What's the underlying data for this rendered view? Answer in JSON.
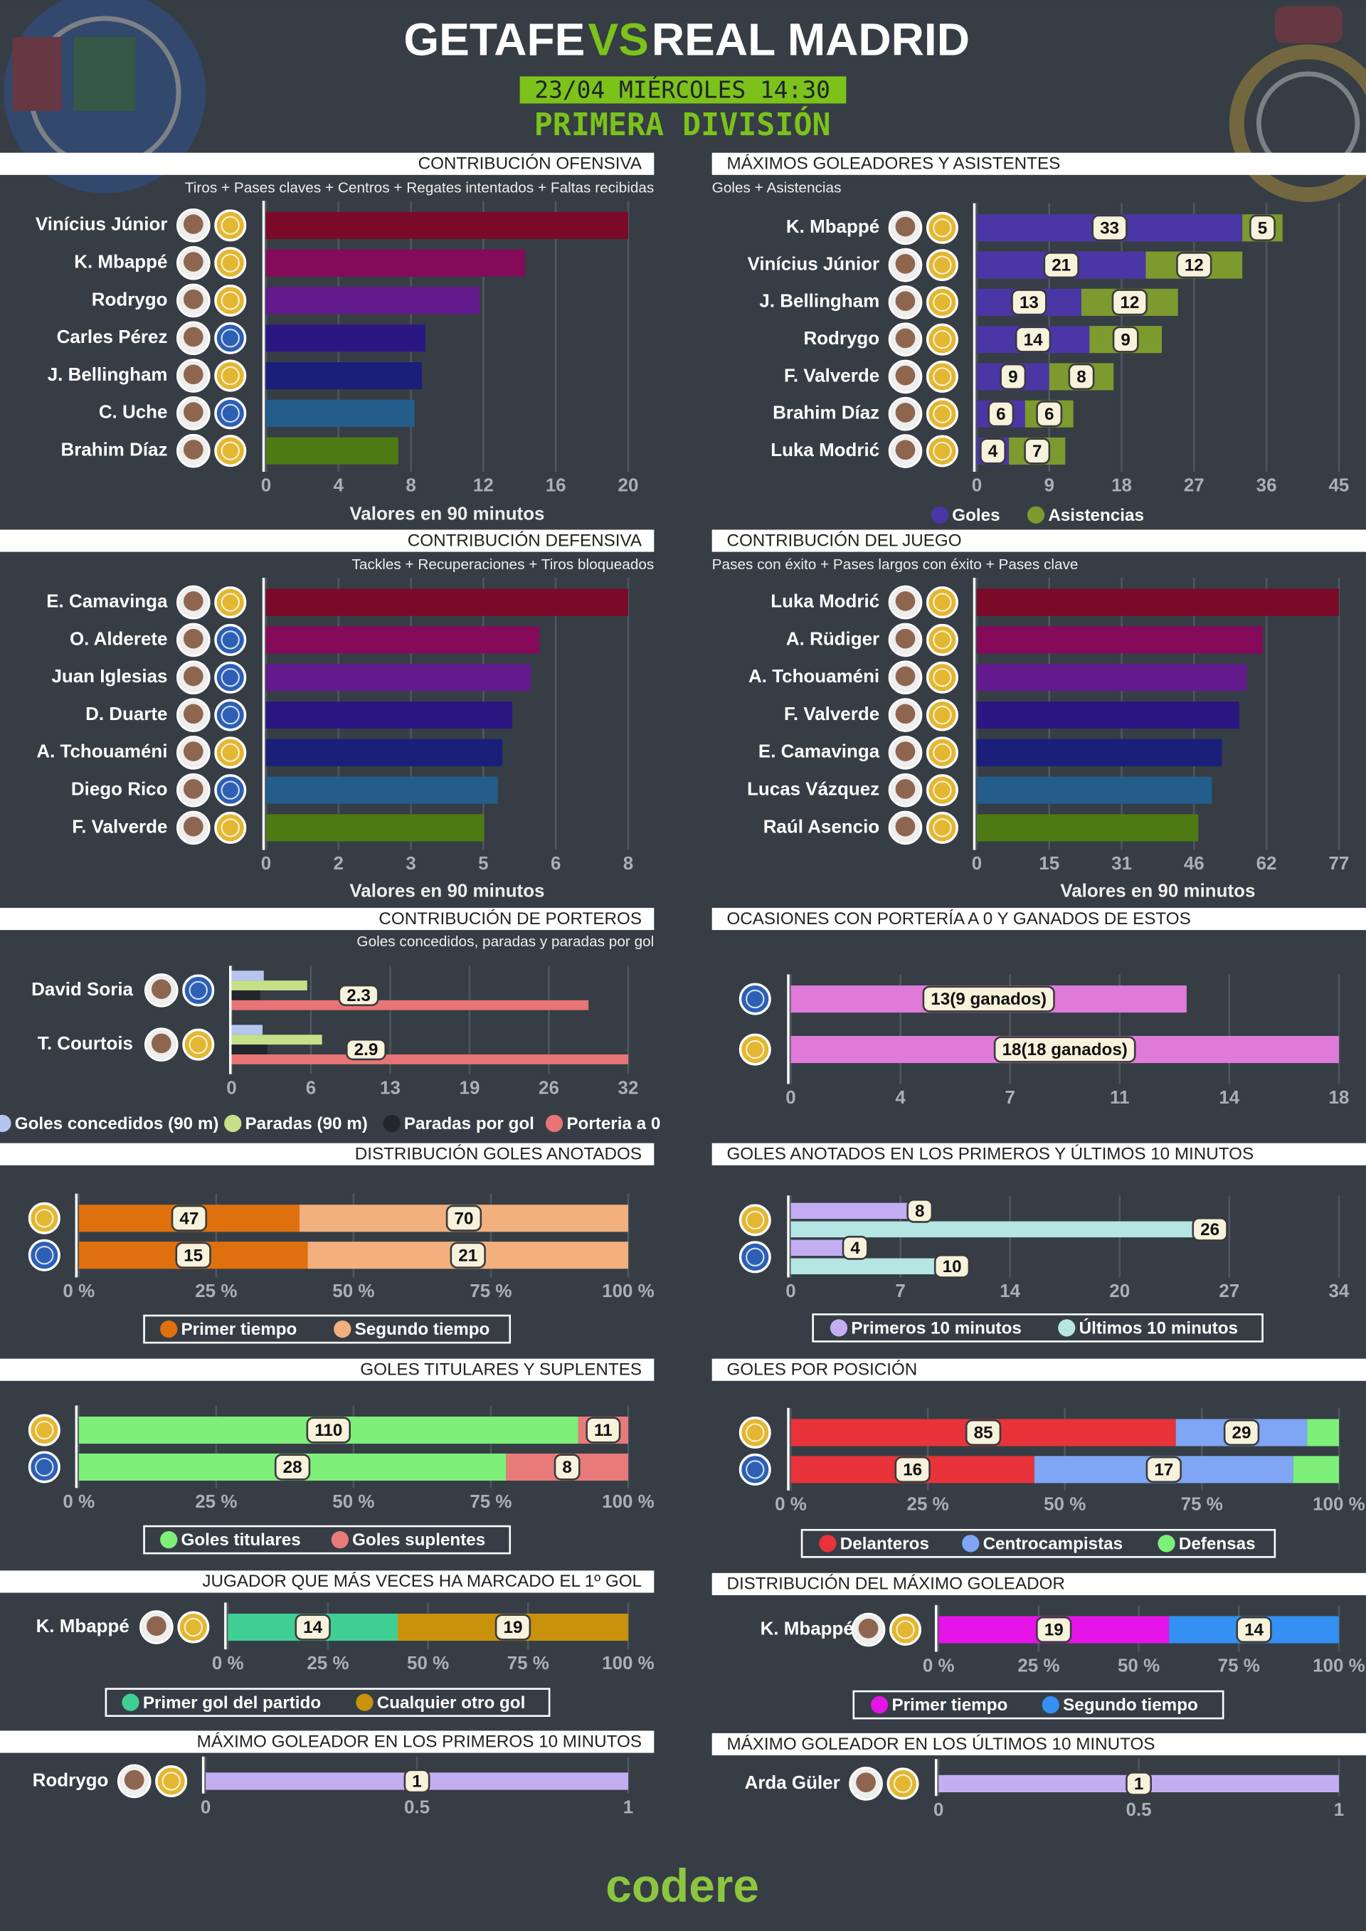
{
  "header": {
    "team_home": "GETAFE",
    "vs": "VS",
    "team_away": "REAL MADRID",
    "datetime": "23/04 MIÉRCOLES 14:30",
    "competition": "PRIMERA DIVISIÓN"
  },
  "footer": "codere",
  "chart_data": [
    {
      "type": "bar",
      "title": "CONTRIBUCIÓN OFENSIVA",
      "subtitle": "Tiros + Pases claves + Centros + Regates intentados + Faltas recibidas",
      "categories": [
        "Vinícius Júnior",
        "K. Mbappé",
        "Rodrygo",
        "Carles Pérez",
        "J. Bellingham",
        "C. Uche",
        "Brahim Díaz"
      ],
      "values": [
        20,
        14.3,
        11.8,
        8.8,
        8.6,
        8.2,
        7.3
      ],
      "colors": [
        "#7a0a28",
        "#860a5a",
        "#621a8c",
        "#2a1782",
        "#1a1f7a",
        "#235d8a",
        "#4d7a12"
      ],
      "badge_colors": [
        "#e3b732",
        "#e3b732",
        "#e3b732",
        "#2d5fb4",
        "#e3b732",
        "#2d5fb4",
        "#e3b732"
      ],
      "xlim": [
        0,
        20
      ],
      "xticks": [
        0,
        4,
        8,
        12,
        16,
        20
      ],
      "xlabel": "Valores en 90 minutos",
      "grid": true
    },
    {
      "type": "stacked_bar",
      "title": "MÁXIMOS GOLEADORES Y ASISTENTES",
      "subtitle": "Goles + Asistencias",
      "categories": [
        "K. Mbappé",
        "Vinícius Júnior",
        "J. Bellingham",
        "Rodrygo",
        "F. Valverde",
        "Brahim Díaz",
        "Luka Modrić"
      ],
      "badge_colors": [
        "#e3b732",
        "#e3b732",
        "#e3b732",
        "#e3b732",
        "#e3b732",
        "#e3b732",
        "#e3b732"
      ],
      "series": [
        {
          "name": "Goles",
          "color": "#4b36a5",
          "values": [
            33,
            21,
            13,
            14,
            9,
            6,
            4
          ]
        },
        {
          "name": "Asistencias",
          "color": "#7d9a2e",
          "values": [
            5,
            12,
            12,
            9,
            8,
            6,
            7
          ]
        }
      ],
      "show_values": true,
      "xlim": [
        0,
        45
      ],
      "xticks": [
        0,
        9,
        18,
        27,
        36,
        45
      ],
      "grid": true,
      "legend": "bottom"
    },
    {
      "type": "bar",
      "title": "CONTRIBUCIÓN DEFENSIVA",
      "subtitle": "Tackles + Recuperaciones + Tiros bloqueados",
      "categories": [
        "E. Camavinga",
        "O. Alderete",
        "Juan Iglesias",
        "D. Duarte",
        "A. Tchouaméni",
        "Diego Rico",
        "F. Valverde"
      ],
      "values": [
        8,
        6.04,
        5.85,
        5.44,
        5.22,
        5.12,
        4.82
      ],
      "colors": [
        "#7a0a28",
        "#860a5a",
        "#621a8c",
        "#2a1782",
        "#1a1f7a",
        "#235d8a",
        "#4d7a12"
      ],
      "badge_colors": [
        "#e3b732",
        "#2d5fb4",
        "#2d5fb4",
        "#2d5fb4",
        "#e3b732",
        "#2d5fb4",
        "#e3b732"
      ],
      "xlim": [
        0,
        8
      ],
      "xticks": [
        0,
        {
          "value": 1.6,
          "label": "2"
        },
        {
          "value": 3.2,
          "label": "3"
        },
        {
          "value": 4.8,
          "label": "5"
        },
        {
          "value": 6.4,
          "label": "6"
        },
        8
      ],
      "xlabel": "Valores en 90 minutos",
      "grid": true
    },
    {
      "type": "bar",
      "title": "CONTRIBUCIÓN DEL JUEGO",
      "subtitle": "Pases con éxito + Pases largos con éxito + Pases clave",
      "categories": [
        "Luka Modrić",
        "A. Rüdiger",
        "A. Tchouaméni",
        "F. Valverde",
        "E. Camavinga",
        "Lucas Vázquez",
        "Raúl Asencio"
      ],
      "values": [
        77,
        60.8,
        57.4,
        55.8,
        52.1,
        50,
        47.1
      ],
      "colors": [
        "#7a0a28",
        "#860a5a",
        "#621a8c",
        "#2a1782",
        "#1a1f7a",
        "#235d8a",
        "#4d7a12"
      ],
      "badge_colors": [
        "#e3b732",
        "#e3b732",
        "#e3b732",
        "#e3b732",
        "#e3b732",
        "#e3b732",
        "#e3b732"
      ],
      "xlim": [
        0,
        77
      ],
      "xticks": [
        0,
        {
          "value": 15.4,
          "label": "15"
        },
        {
          "value": 30.8,
          "label": "31"
        },
        {
          "value": 46.2,
          "label": "46"
        },
        {
          "value": 61.6,
          "label": "62"
        },
        77
      ],
      "xlabel": "Valores en 90 minutos",
      "grid": true
    },
    {
      "type": "grouped_bar",
      "title": "CONTRIBUCIÓN DE PORTEROS",
      "subtitle": "Goles concedidos, paradas y paradas por gol",
      "categories": [
        "David Soria",
        "T. Courtois"
      ],
      "badge_colors": [
        "#2d5fb4",
        "#e3b732"
      ],
      "series": [
        {
          "name": "Goles concedidos (90 m)",
          "color": "#b4c6f0",
          "values": [
            2.6,
            2.5
          ]
        },
        {
          "name": "Paradas (90 m)",
          "color": "#c6e08a",
          "values": [
            6.1,
            7.3
          ]
        },
        {
          "name": "Paradas por gol",
          "color": "#22262b",
          "values": [
            2.3,
            2.9
          ],
          "show_values": true
        },
        {
          "name": "Porteria a 0",
          "color": "#e87575",
          "values": [
            28.8,
            32
          ]
        }
      ],
      "xlim": [
        0,
        32
      ],
      "xticks": [
        0,
        {
          "value": 6.4,
          "label": "6"
        },
        {
          "value": 12.8,
          "label": "13"
        },
        {
          "value": 19.2,
          "label": "19"
        },
        {
          "value": 25.6,
          "label": "26"
        },
        32
      ],
      "grid": true,
      "legend": "bottom"
    },
    {
      "type": "bar",
      "title": "OCASIONES CON PORTERÍA A 0 Y GANADOS DE ESTOS",
      "badge_colors": [
        "#2d5fb4",
        "#e3b732"
      ],
      "values": [
        13,
        18
      ],
      "value_labels": [
        "13(9 ganados)",
        "18(18 ganados)"
      ],
      "color": "#e07ad8",
      "show_values": true,
      "xlim": [
        0,
        18
      ],
      "xticks": [
        0,
        {
          "value": 3.6,
          "label": "4"
        },
        {
          "value": 7.2,
          "label": "7"
        },
        {
          "value": 10.8,
          "label": "11"
        },
        {
          "value": 14.4,
          "label": "14"
        },
        18
      ],
      "grid": true
    },
    {
      "type": "stacked_bar",
      "percent": true,
      "title": "DISTRIBUCIÓN GOLES ANOTADOS",
      "badge_colors": [
        "#e3b732",
        "#2d5fb4"
      ],
      "series": [
        {
          "name": "Primer tiempo",
          "color": "#e0700e",
          "values": [
            47,
            15
          ]
        },
        {
          "name": "Segundo tiempo",
          "color": "#f2b07f",
          "values": [
            70,
            21
          ]
        }
      ],
      "show_values": true,
      "xlim": [
        0,
        100
      ],
      "xticks": [
        {
          "value": 0,
          "label": "0 %"
        },
        {
          "value": 25,
          "label": "25 %"
        },
        {
          "value": 50,
          "label": "50 %"
        },
        {
          "value": 75,
          "label": "75 %"
        },
        {
          "value": 100,
          "label": "100 %"
        }
      ],
      "grid": true,
      "legend": "bottom"
    },
    {
      "type": "grouped_bar",
      "title": "GOLES ANOTADOS EN LOS PRIMEROS Y ÚLTIMOS 10 MINUTOS",
      "badge_colors": [
        "#e3b732",
        "#2d5fb4"
      ],
      "series": [
        {
          "name": "Primeros 10 minutos",
          "color": "#c4aef2",
          "values": [
            8,
            4
          ]
        },
        {
          "name": "Últimos 10 minutos",
          "color": "#b6e6e4",
          "values": [
            26,
            10
          ]
        }
      ],
      "show_values": true,
      "xlim": [
        0,
        34
      ],
      "xticks": [
        0,
        {
          "value": 6.8,
          "label": "7"
        },
        {
          "value": 13.6,
          "label": "14"
        },
        {
          "value": 20.4,
          "label": "20"
        },
        {
          "value": 27.2,
          "label": "27"
        },
        34
      ],
      "grid": true,
      "legend": "bottom"
    },
    {
      "type": "stacked_bar",
      "percent": true,
      "title": "GOLES TITULARES Y SUPLENTES",
      "badge_colors": [
        "#e3b732",
        "#2d5fb4"
      ],
      "series": [
        {
          "name": "Goles titulares",
          "color": "#7ef07a",
          "values": [
            110,
            28
          ]
        },
        {
          "name": "Goles suplentes",
          "color": "#e87a7a",
          "values": [
            11,
            8
          ]
        }
      ],
      "show_values": true,
      "xlim": [
        0,
        100
      ],
      "xticks": [
        {
          "value": 0,
          "label": "0 %"
        },
        {
          "value": 25,
          "label": "25 %"
        },
        {
          "value": 50,
          "label": "50 %"
        },
        {
          "value": 75,
          "label": "75 %"
        },
        {
          "value": 100,
          "label": "100 %"
        }
      ],
      "grid": true,
      "legend": "bottom"
    },
    {
      "type": "stacked_bar",
      "percent": true,
      "title": "GOLES POR POSICIÓN",
      "badge_colors": [
        "#e3b732",
        "#2d5fb4"
      ],
      "series": [
        {
          "name": "Delanteros",
          "color": "#e8333a",
          "values": [
            85,
            16
          ]
        },
        {
          "name": "Centrocampistas",
          "color": "#7fa6f4",
          "values": [
            29,
            17
          ]
        },
        {
          "name": "Defensas",
          "color": "#7ef07a",
          "values": [
            7,
            3
          ],
          "show_values": false
        }
      ],
      "show_values": true,
      "xlim": [
        0,
        100
      ],
      "xticks": [
        {
          "value": 0,
          "label": "0 %"
        },
        {
          "value": 25,
          "label": "25 %"
        },
        {
          "value": 50,
          "label": "50 %"
        },
        {
          "value": 75,
          "label": "75 %"
        },
        {
          "value": 100,
          "label": "100 %"
        }
      ],
      "grid": true,
      "legend": "bottom"
    },
    {
      "type": "stacked_bar",
      "percent": true,
      "title": "JUGADOR QUE MÁS VECES HA MARCADO EL 1º GOL",
      "categories": [
        "K. Mbappé"
      ],
      "badge_colors": [
        "#e3b732"
      ],
      "series": [
        {
          "name": "Primer gol del partido",
          "color": "#3fcf95",
          "values": [
            14
          ]
        },
        {
          "name": "Cualquier otro gol",
          "color": "#c8920c",
          "values": [
            19
          ]
        }
      ],
      "show_values": true,
      "xlim": [
        0,
        100
      ],
      "xticks": [
        {
          "value": 0,
          "label": "0 %"
        },
        {
          "value": 25,
          "label": "25 %"
        },
        {
          "value": 50,
          "label": "50 %"
        },
        {
          "value": 75,
          "label": "75 %"
        },
        {
          "value": 100,
          "label": "100 %"
        }
      ],
      "grid": true,
      "legend": "bottom"
    },
    {
      "type": "stacked_bar",
      "percent": true,
      "title": "DISTRIBUCIÓN DEL MÁXIMO GOLEADOR",
      "categories": [
        "K. Mbappé"
      ],
      "badge_colors": [
        "#e3b732"
      ],
      "series": [
        {
          "name": "Primer tiempo",
          "color": "#e514e8",
          "values": [
            19
          ]
        },
        {
          "name": "Segundo tiempo",
          "color": "#3490f2",
          "values": [
            14
          ]
        }
      ],
      "show_values": true,
      "xlim": [
        0,
        100
      ],
      "xticks": [
        {
          "value": 0,
          "label": "0 %"
        },
        {
          "value": 25,
          "label": "25 %"
        },
        {
          "value": 50,
          "label": "50 %"
        },
        {
          "value": 75,
          "label": "75 %"
        },
        {
          "value": 100,
          "label": "100 %"
        }
      ],
      "grid": true,
      "legend": "bottom"
    },
    {
      "type": "bar",
      "title": "MÁXIMO GOLEADOR EN LOS PRIMEROS 10 MINUTOS",
      "categories": [
        "Rodrygo"
      ],
      "badge_colors": [
        "#e3b732"
      ],
      "values": [
        1
      ],
      "color": "#c4aef2",
      "show_values": true,
      "xlim": [
        0,
        1
      ],
      "xticks": [
        0,
        0.5,
        1
      ],
      "grid": true
    },
    {
      "type": "bar",
      "title": "MÁXIMO GOLEADOR EN LOS ÚLTIMOS 10 MINUTOS",
      "categories": [
        "Arda Güler"
      ],
      "badge_colors": [
        "#e3b732"
      ],
      "values": [
        1
      ],
      "color": "#c4aef2",
      "show_values": true,
      "xlim": [
        0,
        1
      ],
      "xticks": [
        0,
        0.5,
        1
      ],
      "grid": true
    }
  ]
}
